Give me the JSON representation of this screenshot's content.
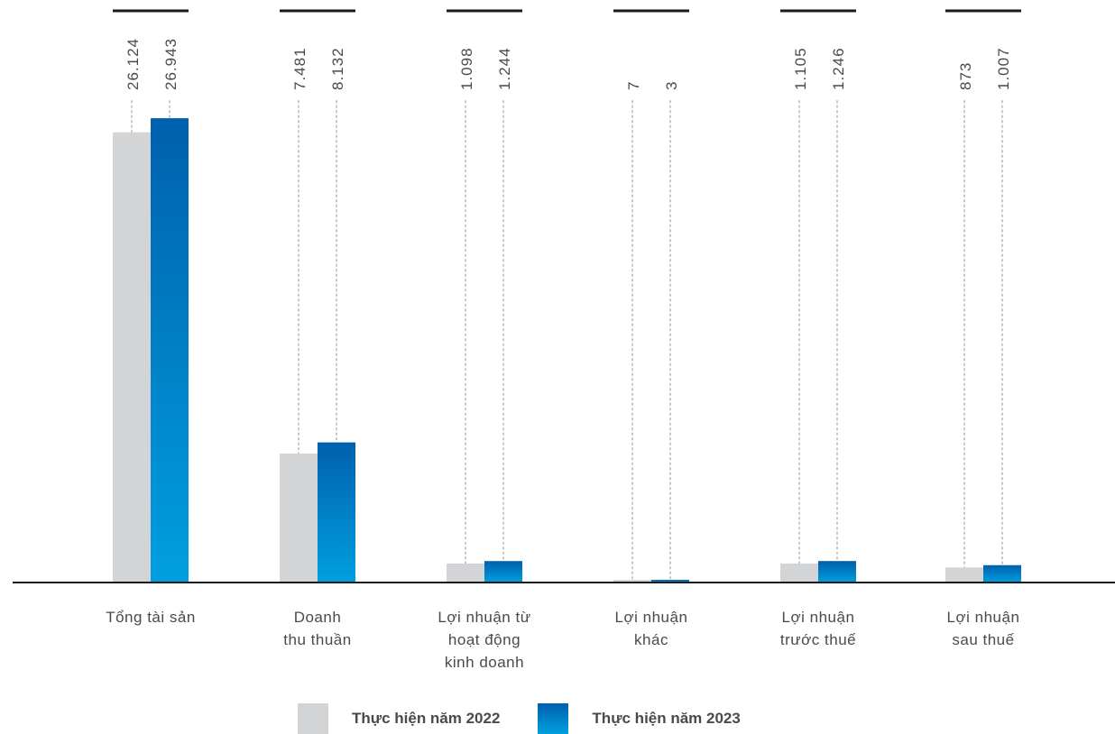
{
  "chart_data": {
    "type": "bar",
    "categories": [
      [
        "Tổng tài sản"
      ],
      [
        "Doanh",
        "thu thuần"
      ],
      [
        "Lợi nhuận từ",
        "hoạt động",
        "kinh doanh"
      ],
      [
        "Lợi nhuận",
        "khác"
      ],
      [
        "Lợi nhuận",
        "trước thuế"
      ],
      [
        "Lợi nhuận",
        "sau thuế"
      ]
    ],
    "series": [
      {
        "name": "Thực hiện năm 2022",
        "values": [
          26124,
          7481,
          1098,
          7,
          1105,
          873
        ],
        "labels": [
          "26.124",
          "7.481",
          "1.098",
          "7",
          "1.105",
          "873"
        ],
        "color": "#d3d4d6"
      },
      {
        "name": "Thực hiện năm 2023",
        "values": [
          26943,
          8132,
          1244,
          3,
          1246,
          1007
        ],
        "labels": [
          "26.943",
          "8.132",
          "1.244",
          "3",
          "1.246",
          "1.007"
        ],
        "color_top": "#0060ad",
        "color_bottom": "#009fe0"
      }
    ],
    "ylim": [
      0,
      27000
    ],
    "grid": false,
    "legend_position": "bottom"
  },
  "colors": {
    "baseline": "#1a1a1a",
    "label_text": "#4a4a4a",
    "leader_line": "#c8c8c8"
  }
}
